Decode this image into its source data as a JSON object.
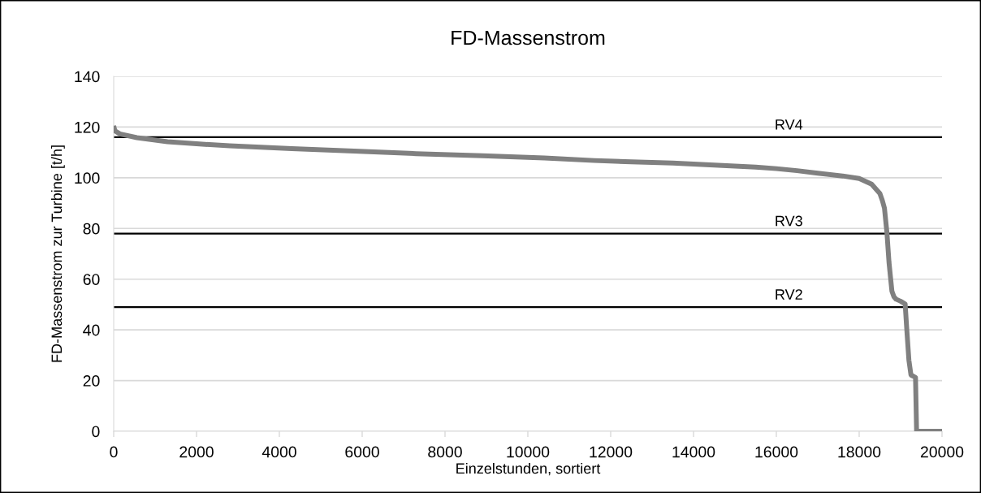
{
  "chart_data": {
    "type": "line",
    "title": "FD-Massenstrom",
    "xlabel": "Einzelstunden, sortiert",
    "ylabel": "FD-Massenstrom zur Turbine [t/h]",
    "x": [
      0,
      30,
      150,
      560,
      1300,
      2000,
      2800,
      4300,
      5800,
      7300,
      8900,
      10400,
      11600,
      12500,
      13500,
      14500,
      15500,
      16000,
      16500,
      17000,
      17600,
      18000,
      18300,
      18500,
      18560,
      18610,
      18670,
      18720,
      18790,
      18840,
      18890,
      19000,
      19110,
      19150,
      19200,
      19250,
      19300,
      19360,
      19386,
      19600,
      20000
    ],
    "series": [
      {
        "color": "#808080",
        "values": [
          120.5,
          118.5,
          117.3,
          115.8,
          114.2,
          113.4,
          112.6,
          111.5,
          110.5,
          109.5,
          108.7,
          107.8,
          106.8,
          106.3,
          105.8,
          105,
          104.2,
          103.6,
          102.8,
          101.8,
          100.7,
          99.7,
          97.5,
          93.8,
          91,
          88,
          78.3,
          66.6,
          55.3,
          53,
          52.1,
          51.3,
          50.2,
          40,
          28.1,
          22.2,
          21.8,
          21.2,
          0,
          0,
          0
        ]
      }
    ],
    "xlim": [
      0,
      20000
    ],
    "ylim": [
      0,
      140
    ],
    "xticks": [
      0,
      2000,
      4000,
      6000,
      8000,
      10000,
      12000,
      14000,
      16000,
      18000,
      20000
    ],
    "yticks": [
      0,
      20,
      40,
      60,
      80,
      100,
      120,
      140
    ],
    "grid": "y",
    "marker": "none",
    "line_style": "solid",
    "ref_lines": [
      {
        "axis": "y",
        "value": 116,
        "label": "RV4",
        "color": "#000000"
      },
      {
        "axis": "y",
        "value": 78,
        "label": "RV3",
        "color": "#000000"
      },
      {
        "axis": "y",
        "value": 49,
        "label": "RV2",
        "color": "#000000"
      }
    ]
  }
}
